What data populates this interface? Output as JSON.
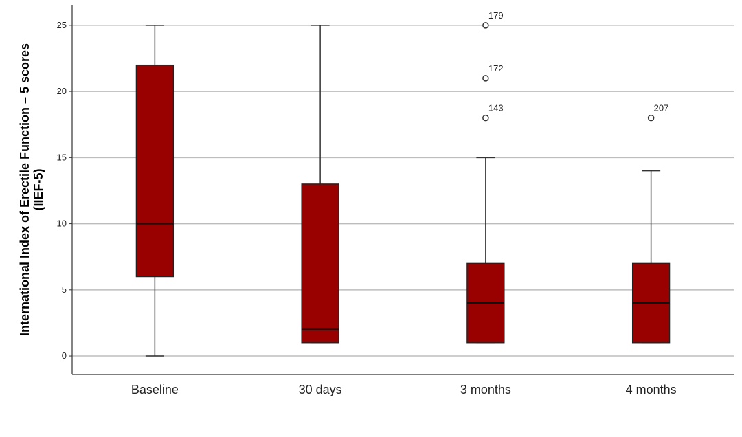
{
  "chart_data": {
    "type": "boxplot",
    "ylabel_line1": "International Index of Erectile Function – 5 scores",
    "ylabel_line2": "(IIEF-5)",
    "xlabel": "",
    "ylim": [
      -1.4,
      26.5
    ],
    "yticks": [
      0,
      5,
      10,
      15,
      20,
      25
    ],
    "grid": true,
    "box_color": "#990000",
    "categories": [
      "Baseline",
      "30 days",
      "3 months",
      "4 months"
    ],
    "boxes": [
      {
        "category": "Baseline",
        "min": 0,
        "q1": 6,
        "median": 10,
        "q3": 22,
        "max": 25,
        "outliers": []
      },
      {
        "category": "30 days",
        "min": 1,
        "q1": 1,
        "median": 2,
        "q3": 13,
        "max": 25,
        "outliers": []
      },
      {
        "category": "3 months",
        "min": 1,
        "q1": 1,
        "median": 4,
        "q3": 7,
        "max": 15,
        "outliers": [
          {
            "value": 25,
            "label": "179"
          },
          {
            "value": 21,
            "label": "172"
          },
          {
            "value": 18,
            "label": "143"
          }
        ]
      },
      {
        "category": "4 months",
        "min": 1,
        "q1": 1,
        "median": 4,
        "q3": 7,
        "max": 14,
        "outliers": [
          {
            "value": 18,
            "label": "207"
          }
        ]
      }
    ]
  }
}
